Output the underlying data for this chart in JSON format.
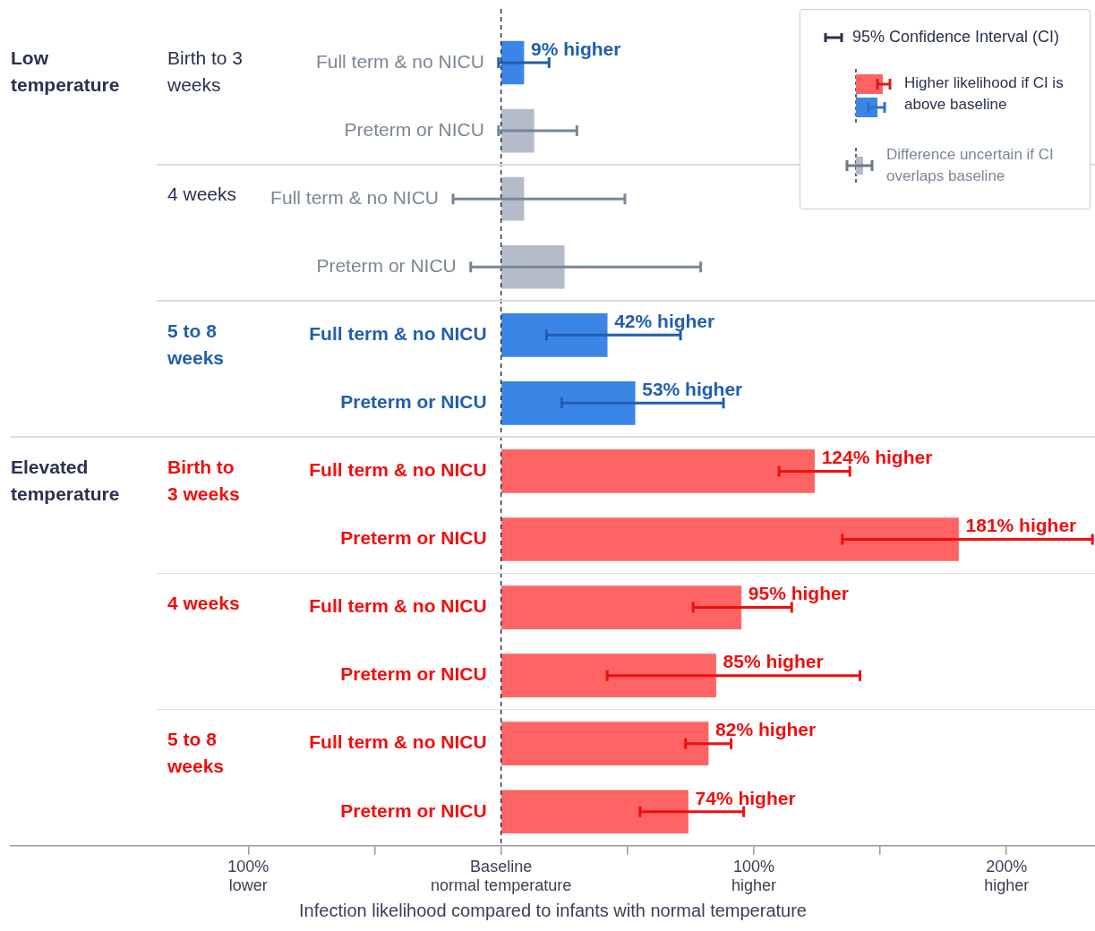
{
  "chart_data": {
    "type": "bar",
    "orientation": "horizontal",
    "categories": [
      "Full term & no NICU",
      "Preterm or NICU",
      "Full term & no NICU",
      "Preterm or NICU",
      "Full term & no NICU",
      "Preterm or NICU",
      "Full term & no NICU",
      "Preterm or NICU",
      "Full term & no NICU",
      "Preterm or NICU",
      "Full term & no NICU",
      "Preterm or NICU"
    ],
    "values": [
      9,
      13,
      9,
      25,
      42,
      53,
      124,
      181,
      95,
      85,
      82,
      74
    ],
    "colors": [
      "#3b85e6",
      "#b3bcc8",
      "#b3bcc8",
      "#b3bcc8",
      "#3b85e6",
      "#3b85e6",
      "#ff6464",
      "#ff6464",
      "#ff6464",
      "#ff6464",
      "#ff6464",
      "#ff6464"
    ],
    "errors": [
      [
        -1,
        19
      ],
      [
        -1,
        30
      ],
      [
        -19,
        49
      ],
      [
        -12,
        79
      ],
      [
        18,
        71
      ],
      [
        24,
        88
      ],
      [
        110,
        138
      ],
      [
        135,
        234
      ],
      [
        76,
        115
      ],
      [
        42,
        142
      ],
      [
        73,
        91
      ],
      [
        55,
        96
      ]
    ],
    "value_labels": [
      "9% higher",
      null,
      null,
      null,
      "42% higher",
      "53% higher",
      "124% higher",
      "181% higher",
      "95% higher",
      "85% higher",
      "82% higher",
      "74% higher"
    ],
    "xlim": [
      -194,
      235
    ],
    "xticks": [
      {
        "value": -100,
        "label": "100%\nlower"
      },
      {
        "value": -50,
        "label": null
      },
      {
        "value": 0,
        "label": "Baseline\nnormal temperature"
      },
      {
        "value": 50,
        "label": null
      },
      {
        "value": 100,
        "label": "100%\nhigher"
      },
      {
        "value": 150,
        "label": null
      },
      {
        "value": 200,
        "label": "200%\nhigher"
      }
    ],
    "xlabel": "Infection likelihood compared to infants with normal temperature",
    "ref_lines": [
      {
        "axis": "x",
        "value": 0,
        "color": "#2a3050",
        "line_style": "dashed"
      }
    ],
    "annotations": [
      "Low temperature",
      "Birth to 3 weeks",
      "4 weeks",
      "5 to 8 weeks",
      "Elevated temperature",
      "Birth to 3 weeks",
      "4 weeks",
      "5 to 8 weeks",
      "95% Confidence Interval (CI)",
      "Higher likelihood if CI is above baseline",
      "Difference uncertain if CI overlaps baseline"
    ]
  }
}
